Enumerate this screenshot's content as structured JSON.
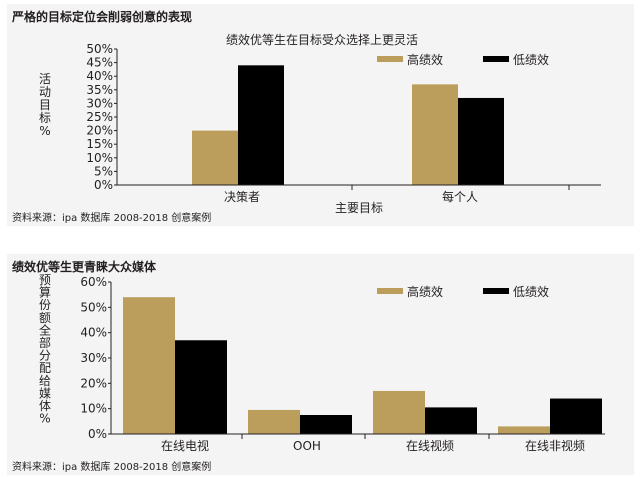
{
  "colors": {
    "high": "#bb9e5c",
    "low": "#000000",
    "axis": "#231f20",
    "panel_bg": "#f4f4f4"
  },
  "panels": [
    {
      "title": "严格的目标定位会削弱创意的表现",
      "source": "资料来源：ipa 数据库 2008-2018 创意案例"
    },
    {
      "title": "绩效优等生更青睐大众媒体",
      "source": "资料来源：ipa 数据库 2008-2018 创意案例"
    }
  ],
  "chart_data": [
    {
      "type": "bar",
      "title": "绩效优等生在目标受众选择上更灵活",
      "xlabel": "主要目标",
      "ylabel": "活动目标%",
      "categories": [
        "决策者",
        "每个人"
      ],
      "series": [
        {
          "name": "高绩效",
          "values": [
            20,
            37
          ]
        },
        {
          "name": "低绩效",
          "values": [
            44,
            32
          ]
        }
      ],
      "ylim": [
        0,
        50
      ],
      "yticks": [
        "0%",
        "5%",
        "10%",
        "15%",
        "20%",
        "25%",
        "30%",
        "35%",
        "40%",
        "45%",
        "50%"
      ],
      "grid": false,
      "legend": "top-right"
    },
    {
      "type": "bar",
      "title": "",
      "xlabel": "",
      "ylabel": "预算份额全部分配给媒体%",
      "categories": [
        "在线电视",
        "OOH",
        "在线视频",
        "在线非视频"
      ],
      "series": [
        {
          "name": "高绩效",
          "values": [
            54,
            9.5,
            17,
            3
          ]
        },
        {
          "name": "低绩效",
          "values": [
            37,
            7.5,
            10.5,
            14
          ]
        }
      ],
      "ylim": [
        0,
        60
      ],
      "yticks": [
        "0%",
        "10%",
        "20%",
        "30%",
        "40%",
        "50%",
        "60%"
      ],
      "grid": false,
      "legend": "top-right"
    }
  ]
}
